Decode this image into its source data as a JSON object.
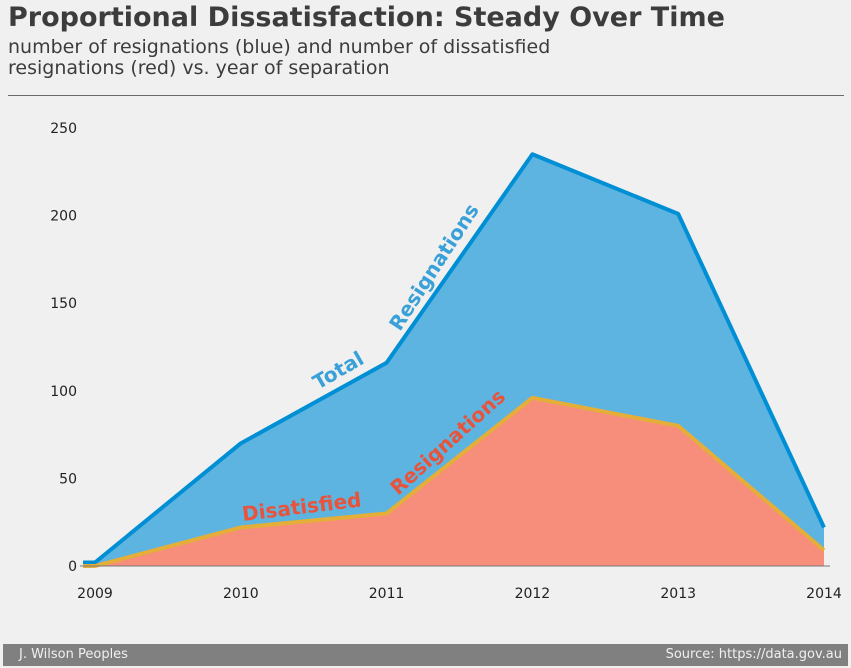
{
  "header": {
    "title": "Proportional Dissatisfaction: Steady Over Time",
    "subtitle": "number of resignations (blue) and number of dissatisfied resignations (red) vs. year of separation"
  },
  "footer": {
    "author": "J. Wilson Peoples",
    "source": "Source: https://data.gov.au"
  },
  "annotations": {
    "total_1": "Total",
    "total_2": "Resignations",
    "dis_1": "Disatisfied",
    "dis_2": "Resignations"
  },
  "chart_data": {
    "type": "area",
    "x": [
      2009,
      2010,
      2011,
      2012,
      2013,
      2014
    ],
    "series": [
      {
        "values": [
          2,
          70,
          116,
          235,
          201,
          22
        ],
        "color": "#008fd5",
        "fill": "#5eb4e0"
      },
      {
        "values": [
          0,
          22,
          30,
          96,
          80,
          9
        ],
        "color": "#e5ae38",
        "fill": "#f68e7b"
      }
    ],
    "xlim": [
      2009,
      2014
    ],
    "ylim": [
      0,
      250
    ],
    "yticks": [
      0,
      50,
      100,
      150,
      200,
      250
    ],
    "xticks": [
      2009,
      2010,
      2011,
      2012,
      2013,
      2014
    ],
    "grid": false,
    "annotation_colors": {
      "total": "#3aa0d8",
      "dissatisfied": "#e8533c"
    }
  }
}
